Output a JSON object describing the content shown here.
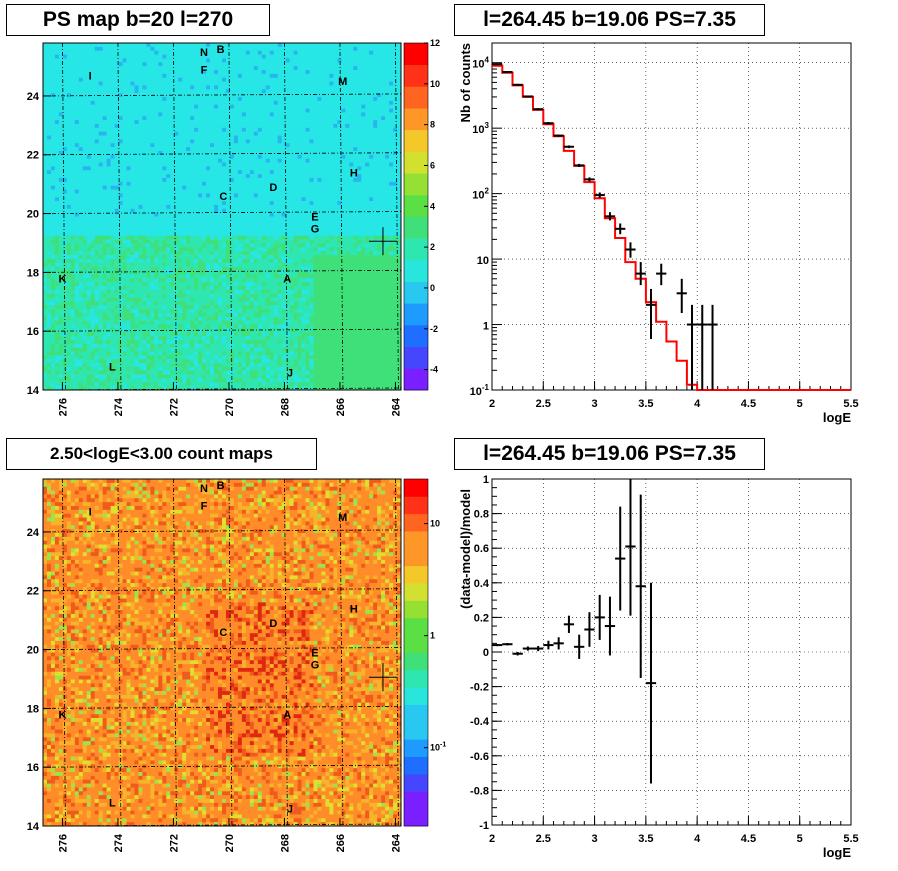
{
  "titles": {
    "ps_map": "PS map b=20 l=270",
    "spectrum": "l=264.45 b=19.06 PS=7.35",
    "count_map": "2.50<logE<3.00 count maps",
    "residual": "l=264.45 b=19.06 PS=7.35"
  },
  "colors": {
    "model_line": "#ff0000",
    "data_points": "#000000",
    "ps_map_base": "#27e6e6",
    "count_map_base": "#ff8c28"
  },
  "chart_data": [
    {
      "type": "heatmap",
      "title": "PS map b=20 l=270",
      "x_ticks": [
        "276",
        "274",
        "272",
        "270",
        "268",
        "266",
        "264"
      ],
      "y_ticks": [
        "14",
        "16",
        "18",
        "20",
        "22",
        "24"
      ],
      "xlim": [
        276.7,
        263.8
      ],
      "ylim": [
        14,
        25.8
      ],
      "colorbar": {
        "ticks": [
          "-4",
          "-2",
          "0",
          "2",
          "4",
          "6",
          "8",
          "10",
          "12"
        ],
        "range": [
          -5,
          12
        ],
        "scale": "linear"
      },
      "marker": {
        "l": 264.45,
        "b": 19.06
      },
      "sources": [
        {
          "label": "N",
          "l": 270.9,
          "b": 25.5
        },
        {
          "label": "B",
          "l": 270.3,
          "b": 25.6
        },
        {
          "label": "I",
          "l": 275.0,
          "b": 24.7
        },
        {
          "label": "F",
          "l": 270.9,
          "b": 24.9
        },
        {
          "label": "M",
          "l": 265.9,
          "b": 24.5
        },
        {
          "label": "H",
          "l": 265.5,
          "b": 21.4
        },
        {
          "label": "C",
          "l": 270.2,
          "b": 20.6
        },
        {
          "label": "D",
          "l": 268.4,
          "b": 20.9
        },
        {
          "label": "E",
          "l": 266.9,
          "b": 19.9
        },
        {
          "label": "G",
          "l": 266.9,
          "b": 19.5
        },
        {
          "label": "K",
          "l": 276.0,
          "b": 17.8
        },
        {
          "label": "A",
          "l": 267.9,
          "b": 17.8
        },
        {
          "label": "L",
          "l": 274.2,
          "b": 14.8
        },
        {
          "label": "J",
          "l": 267.8,
          "b": 14.6
        }
      ]
    },
    {
      "type": "line",
      "title": "l=264.45 b=19.06 PS=7.35",
      "xlabel": "logE",
      "ylabel": "Nb of counts",
      "xlim": [
        2,
        5.5
      ],
      "ylim": [
        0.1,
        20000
      ],
      "y_scale": "log",
      "x_ticks": [
        "2",
        "2.5",
        "3",
        "3.5",
        "4",
        "4.5",
        "5",
        "5.5"
      ],
      "y_ticks": [
        "10^-1",
        "1",
        "10",
        "10^2",
        "10^3",
        "10^4"
      ],
      "model_step": {
        "edges": [
          2.0,
          2.1,
          2.2,
          2.3,
          2.4,
          2.5,
          2.6,
          2.7,
          2.8,
          2.9,
          3.0,
          3.1,
          3.2,
          3.3,
          3.4,
          3.5,
          3.6,
          3.7,
          3.8,
          3.9,
          4.0,
          5.5
        ],
        "values": [
          9000,
          7000,
          4500,
          3000,
          1900,
          1150,
          750,
          450,
          265,
          150,
          85,
          42,
          21,
          9,
          5,
          2.2,
          1.1,
          0.55,
          0.28,
          0.12,
          0.1
        ]
      },
      "data_points": [
        {
          "x": 2.05,
          "y": 9500,
          "elo": 9300,
          "ehi": 9700
        },
        {
          "x": 2.15,
          "y": 7200,
          "elo": 7000,
          "ehi": 7400
        },
        {
          "x": 2.25,
          "y": 4600,
          "elo": 4450,
          "ehi": 4750
        },
        {
          "x": 2.35,
          "y": 3050,
          "elo": 2950,
          "ehi": 3150
        },
        {
          "x": 2.45,
          "y": 1950,
          "elo": 1880,
          "ehi": 2020
        },
        {
          "x": 2.55,
          "y": 1190,
          "elo": 1140,
          "ehi": 1240
        },
        {
          "x": 2.65,
          "y": 770,
          "elo": 740,
          "ehi": 800
        },
        {
          "x": 2.75,
          "y": 520,
          "elo": 495,
          "ehi": 545
        },
        {
          "x": 2.85,
          "y": 270,
          "elo": 255,
          "ehi": 285
        },
        {
          "x": 2.95,
          "y": 165,
          "elo": 153,
          "ehi": 177
        },
        {
          "x": 3.05,
          "y": 95,
          "elo": 86,
          "ehi": 104
        },
        {
          "x": 3.15,
          "y": 45,
          "elo": 39,
          "ehi": 52
        },
        {
          "x": 3.25,
          "y": 29,
          "elo": 24,
          "ehi": 35
        },
        {
          "x": 3.35,
          "y": 14,
          "elo": 10.5,
          "ehi": 18
        },
        {
          "x": 3.45,
          "y": 6,
          "elo": 4,
          "ehi": 9
        },
        {
          "x": 3.55,
          "y": 2,
          "elo": 0.6,
          "ehi": 3.5
        },
        {
          "x": 3.65,
          "y": 6,
          "elo": 4,
          "ehi": 8.5
        },
        {
          "x": 3.85,
          "y": 3,
          "elo": 1.5,
          "ehi": 5
        },
        {
          "x": 3.95,
          "y": 1,
          "elo": 0.1,
          "ehi": 2
        },
        {
          "x": 4.05,
          "y": 1,
          "elo": 0.1,
          "ehi": 2
        },
        {
          "x": 4.15,
          "y": 1,
          "elo": 0.1,
          "ehi": 2
        }
      ]
    },
    {
      "type": "heatmap",
      "title": "2.50<logE<3.00 count maps",
      "x_ticks": [
        "276",
        "274",
        "272",
        "270",
        "268",
        "266",
        "264"
      ],
      "y_ticks": [
        "14",
        "16",
        "18",
        "20",
        "22",
        "24"
      ],
      "xlim": [
        276.7,
        263.8
      ],
      "ylim": [
        14,
        25.8
      ],
      "colorbar": {
        "ticks": [
          "10^-1",
          "1",
          "10"
        ],
        "range": [
          0.02,
          25
        ],
        "scale": "log"
      },
      "marker": {
        "l": 264.45,
        "b": 19.06
      }
    },
    {
      "type": "scatter",
      "title": "l=264.45 b=19.06 PS=7.35",
      "xlabel": "logE",
      "ylabel": "(data-model)/model",
      "xlim": [
        2,
        5.5
      ],
      "ylim": [
        -1,
        1
      ],
      "x_ticks": [
        "2",
        "2.5",
        "3",
        "3.5",
        "4",
        "4.5",
        "5",
        "5.5"
      ],
      "y_ticks": [
        "-1",
        "-0.8",
        "-0.6",
        "-0.4",
        "-0.2",
        "0",
        "0.2",
        "0.4",
        "0.6",
        "0.8",
        "1"
      ],
      "data_points": [
        {
          "x": 2.05,
          "y": 0.04,
          "err": 0.006
        },
        {
          "x": 2.15,
          "y": 0.045,
          "err": 0.007
        },
        {
          "x": 2.25,
          "y": -0.01,
          "err": 0.01
        },
        {
          "x": 2.35,
          "y": 0.02,
          "err": 0.012
        },
        {
          "x": 2.45,
          "y": 0.02,
          "err": 0.015
        },
        {
          "x": 2.55,
          "y": 0.04,
          "err": 0.025
        },
        {
          "x": 2.65,
          "y": 0.05,
          "err": 0.035
        },
        {
          "x": 2.75,
          "y": 0.16,
          "err": 0.05
        },
        {
          "x": 2.85,
          "y": 0.03,
          "err": 0.07
        },
        {
          "x": 2.95,
          "y": 0.13,
          "err": 0.1
        },
        {
          "x": 3.05,
          "y": 0.2,
          "err": 0.13
        },
        {
          "x": 3.15,
          "y": 0.15,
          "err": 0.17
        },
        {
          "x": 3.25,
          "y": 0.54,
          "err": 0.3
        },
        {
          "x": 3.35,
          "y": 0.61,
          "err": 0.4
        },
        {
          "x": 3.45,
          "y": 0.38,
          "err": 0.53
        },
        {
          "x": 3.55,
          "y": -0.18,
          "err": 0.58
        }
      ]
    }
  ]
}
